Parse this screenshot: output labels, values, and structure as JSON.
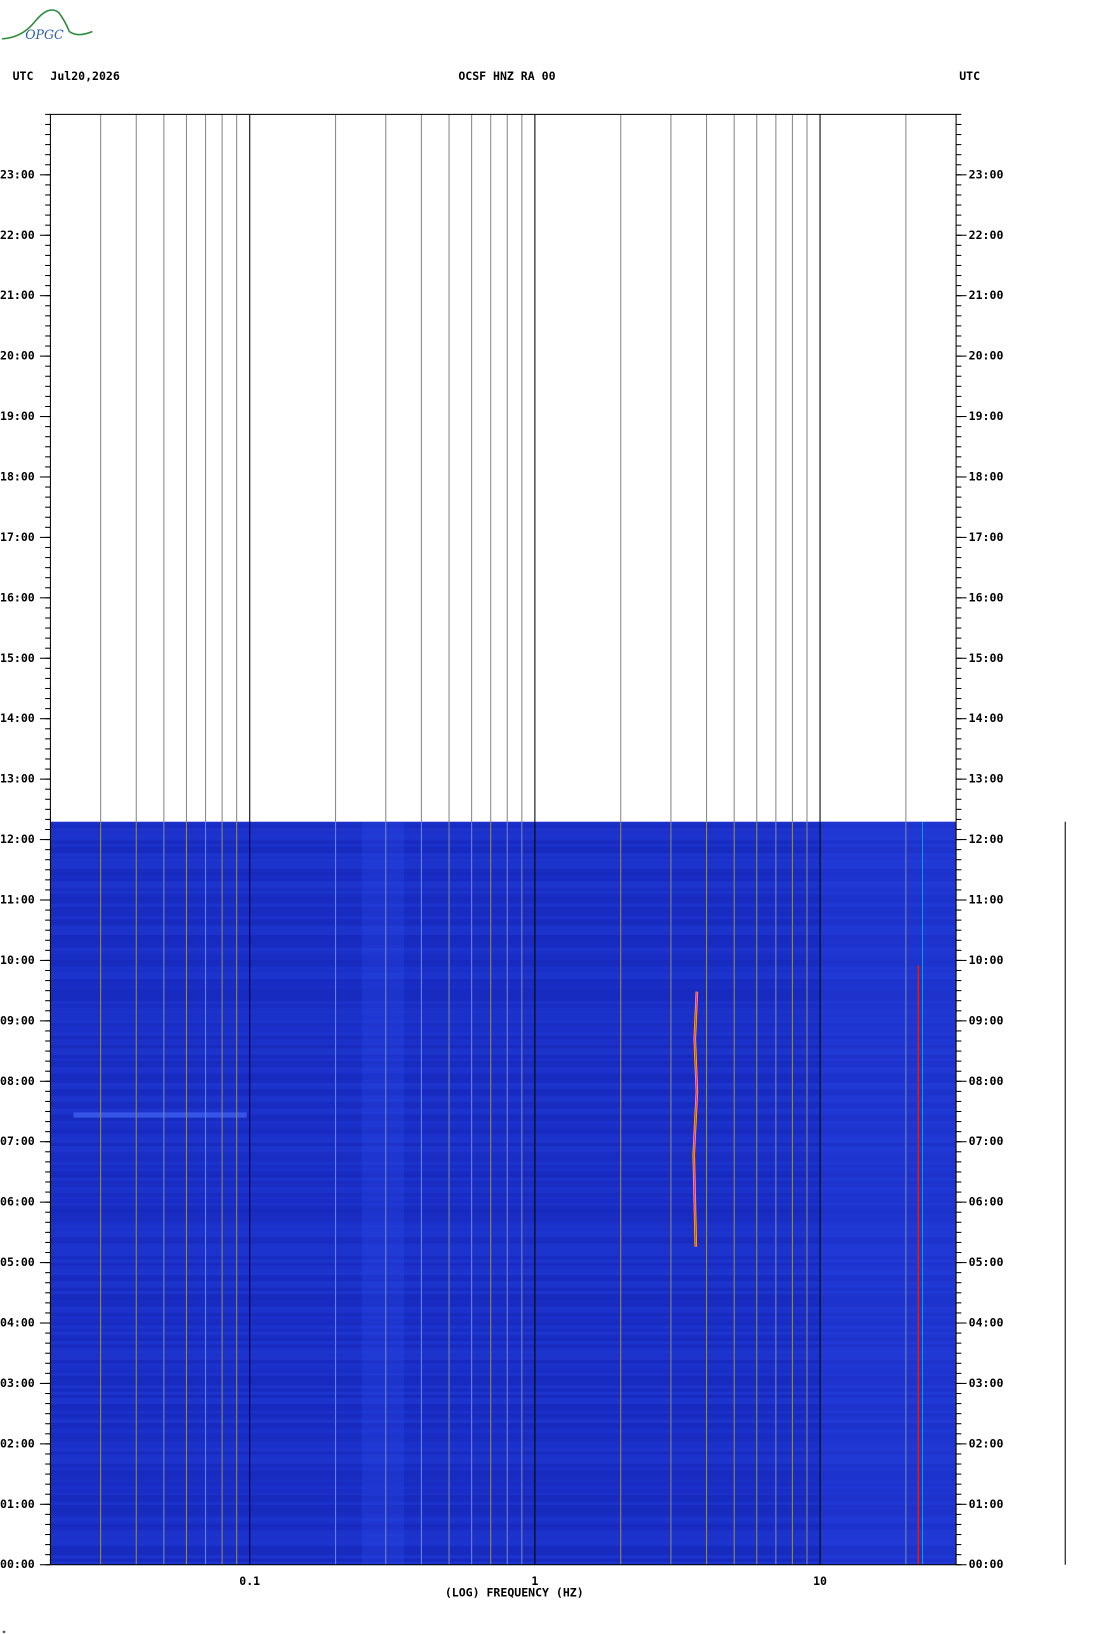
{
  "chart_data": {
    "type": "spectrogram",
    "logo": "OPGC",
    "header_left": "UTC",
    "date": "Jul20,2026",
    "title": "OCSF HNZ RA 00",
    "header_right": "UTC",
    "xlabel": "(LOG) FREQUENCY (HZ)",
    "xscale": "log",
    "xlim": [
      0.02,
      30
    ],
    "xticks": [
      0.1,
      1,
      10
    ],
    "ylim": [
      0,
      24
    ],
    "yticks": [
      {
        "value": 0,
        "label": "00:00"
      },
      {
        "value": 1,
        "label": "01:00"
      },
      {
        "value": 2,
        "label": "02:00"
      },
      {
        "value": 3,
        "label": "03:00"
      },
      {
        "value": 4,
        "label": "04:00"
      },
      {
        "value": 5,
        "label": "05:00"
      },
      {
        "value": 6,
        "label": "06:00"
      },
      {
        "value": 7,
        "label": "07:00"
      },
      {
        "value": 8,
        "label": "08:00"
      },
      {
        "value": 9,
        "label": "09:00"
      },
      {
        "value": 10,
        "label": "10:00"
      },
      {
        "value": 11,
        "label": "11:00"
      },
      {
        "value": 12,
        "label": "12:00"
      },
      {
        "value": 13,
        "label": "13:00"
      },
      {
        "value": 14,
        "label": "14:00"
      },
      {
        "value": 15,
        "label": "15:00"
      },
      {
        "value": 16,
        "label": "16:00"
      },
      {
        "value": 17,
        "label": "17:00"
      },
      {
        "value": 18,
        "label": "18:00"
      },
      {
        "value": 19,
        "label": "19:00"
      },
      {
        "value": 20,
        "label": "20:00"
      },
      {
        "value": 21,
        "label": "21:00"
      },
      {
        "value": 22,
        "label": "22:00"
      },
      {
        "value": 23,
        "label": "23:00"
      }
    ],
    "grid": true
  }
}
